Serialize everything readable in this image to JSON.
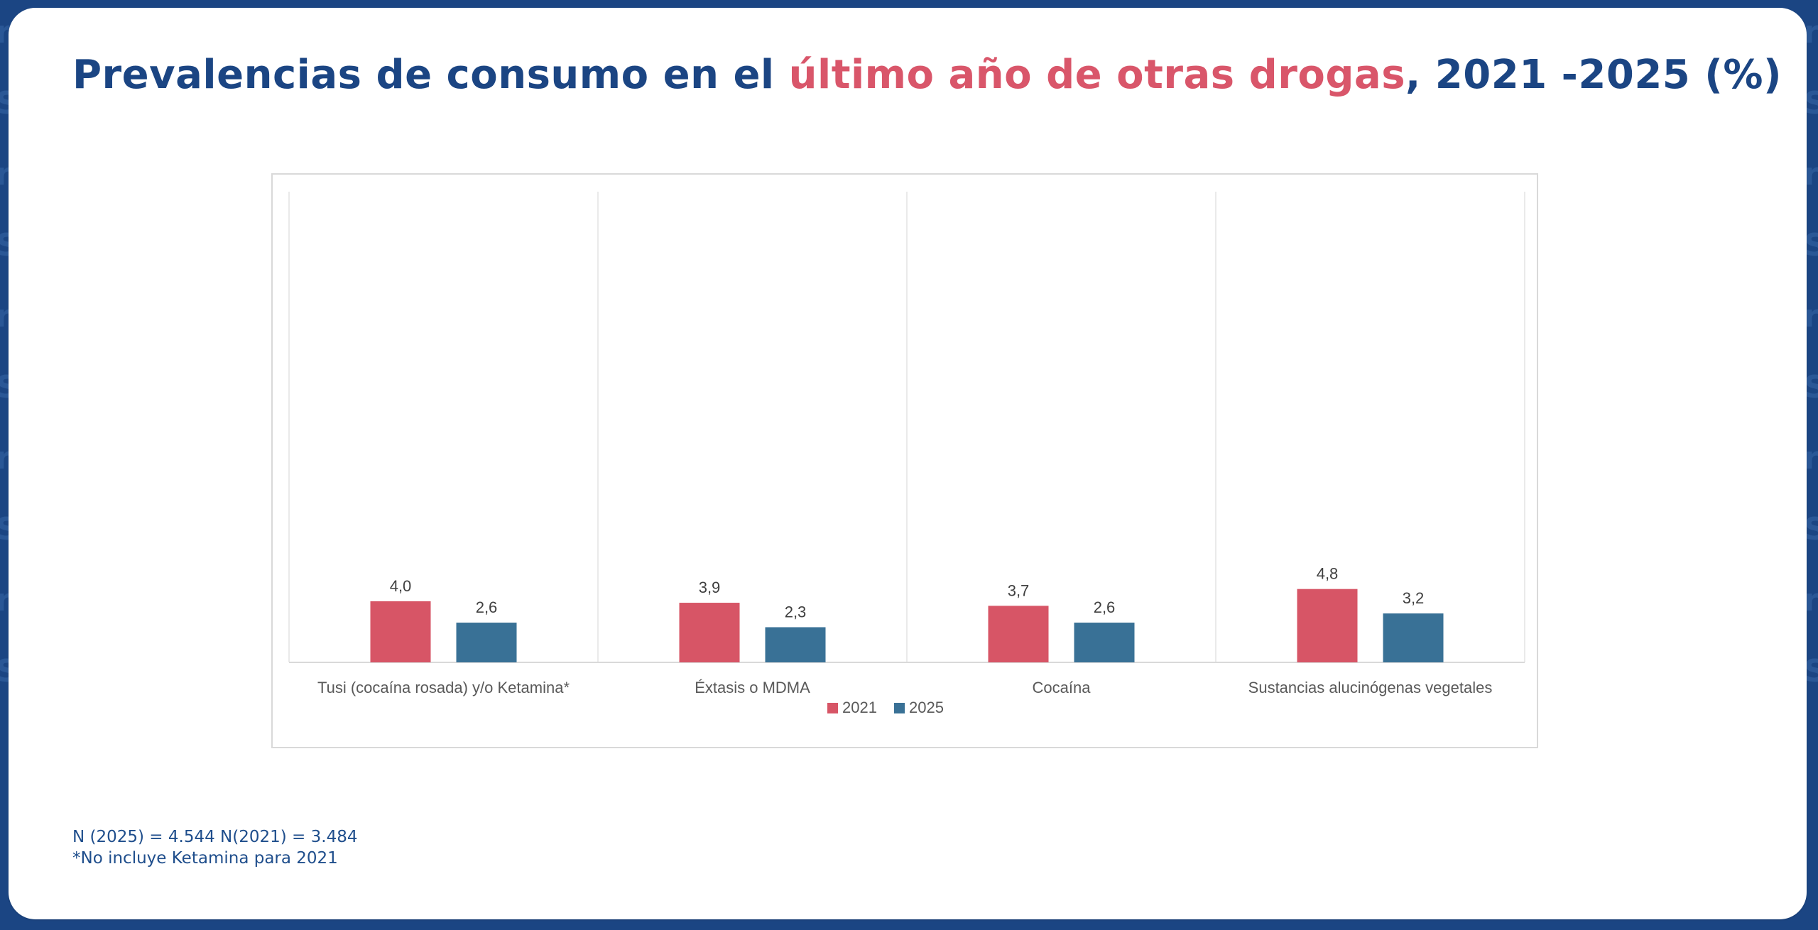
{
  "slide": {
    "title": {
      "part1": "Prevalencias de consumo en el ",
      "highlight": "último año de otras drogas",
      "part2": ", 2021 -2025 (%)"
    },
    "notes": [
      "N (2025) = 4.544 N(2021) = 3.484",
      "*No incluye Ketamina para 2021"
    ],
    "colors": {
      "frame": "#1b4583",
      "title": "#1b4583",
      "highlight": "#d9566a"
    }
  },
  "chart_data": {
    "type": "bar",
    "title": "Prevalencias de consumo en el último año de otras drogas, 2021 -2025 (%)",
    "xlabel": "",
    "ylabel": "",
    "categories": [
      "Tusi (cocaína rosada) y/o Ketamina*",
      "Éxtasis o MDMA",
      "Cocaína",
      "Sustancias alucinógenas vegetales"
    ],
    "series": [
      {
        "name": "2021",
        "color": "#d75566",
        "values": [
          4.0,
          3.9,
          3.7,
          4.8
        ],
        "labels": [
          "4,0",
          "3,9",
          "3,7",
          "4,8"
        ]
      },
      {
        "name": "2025",
        "color": "#397196",
        "values": [
          2.6,
          2.3,
          2.6,
          3.2
        ],
        "labels": [
          "2,6",
          "2,3",
          "2,6",
          "3,2"
        ]
      }
    ],
    "ylim": [
      0,
      30.8
    ],
    "y_axis_visible": false,
    "grid": "vertical category separators",
    "legend": "bottom-center",
    "data_labels": true
  }
}
